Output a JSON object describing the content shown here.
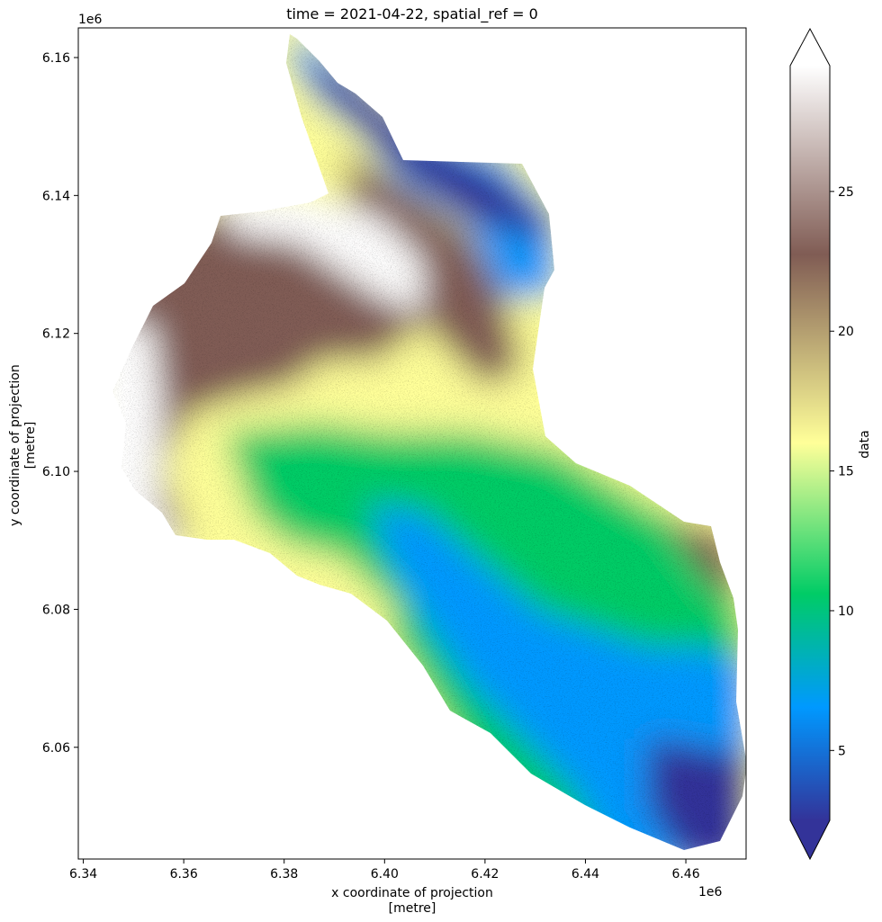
{
  "chart_data": {
    "type": "heatmap",
    "title": "time = 2021-04-22, spatial_ref = 0",
    "xlabel_line1": "x coordinate of projection",
    "xlabel_line2": "[metre]",
    "ylabel_line1": "y coordinate of projection",
    "ylabel_line2": "[metre]",
    "x_offset_label": "1e6",
    "y_offset_label": "1e6",
    "x_ticks": [
      {
        "value": 6.34,
        "label": "6.34"
      },
      {
        "value": 6.36,
        "label": "6.36"
      },
      {
        "value": 6.38,
        "label": "6.38"
      },
      {
        "value": 6.4,
        "label": "6.40"
      },
      {
        "value": 6.42,
        "label": "6.42"
      },
      {
        "value": 6.44,
        "label": "6.44"
      },
      {
        "value": 6.46,
        "label": "6.46"
      }
    ],
    "y_ticks": [
      {
        "value": 6.06,
        "label": "6.06"
      },
      {
        "value": 6.08,
        "label": "6.08"
      },
      {
        "value": 6.1,
        "label": "6.10"
      },
      {
        "value": 6.12,
        "label": "6.12"
      },
      {
        "value": 6.14,
        "label": "6.14"
      },
      {
        "value": 6.16,
        "label": "6.16"
      }
    ],
    "xlim": [
      6.339,
      6.472
    ],
    "ylim": [
      6.0438,
      6.1643
    ],
    "colorbar": {
      "label": "data",
      "range": [
        2.5,
        29.5
      ],
      "extend": "both",
      "colormap": "terrain",
      "ticks": [
        {
          "value": 5,
          "label": "5"
        },
        {
          "value": 10,
          "label": "10"
        },
        {
          "value": 15,
          "label": "15"
        },
        {
          "value": 20,
          "label": "20"
        },
        {
          "value": 25,
          "label": "25"
        }
      ]
    },
    "colors": {
      "c0": "#333399",
      "c1": "#0099ff",
      "c2": "#00cc66",
      "c3": "#ffff99",
      "c4": "#805c54",
      "c5": "#ffffff",
      "masked": "#ffffff"
    }
  }
}
